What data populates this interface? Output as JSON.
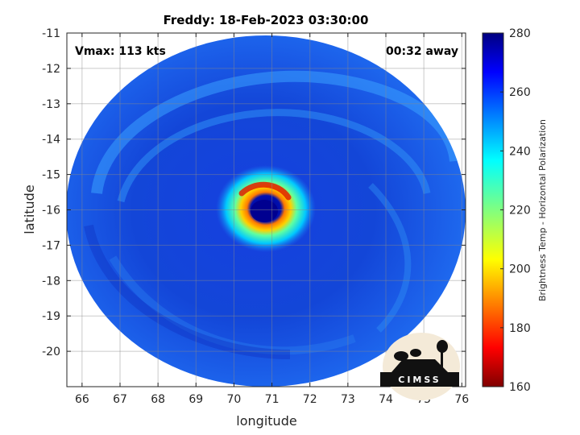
{
  "plot": {
    "title": "Freddy: 18-Feb-2023 03:30:00",
    "xlabel": "longitude",
    "ylabel": "latitude",
    "vmax_text": "Vmax: 113 kts",
    "time_offset_text": "00:32 away",
    "x_ticks": [
      "66",
      "67",
      "68",
      "69",
      "70",
      "71",
      "72",
      "73",
      "74",
      "75",
      "76"
    ],
    "y_ticks": [
      "-11",
      "-12",
      "-13",
      "-14",
      "-15",
      "-16",
      "-17",
      "-18",
      "-19",
      "-20"
    ],
    "colorbar_label": "Brightness Temp - Horizontal Polarization",
    "colorbar_ticks": [
      "280",
      "260",
      "240",
      "220",
      "200",
      "180",
      "160"
    ],
    "logo_text": "CIMSS"
  },
  "map_data": {
    "lon_range": [
      65.6,
      76.1
    ],
    "lat_range": [
      -21,
      -11
    ],
    "storm_center": {
      "lon": 70.55,
      "lat": -16.05
    },
    "colorbar_range": [
      160,
      280
    ],
    "colormap": "jet",
    "grid": true
  }
}
